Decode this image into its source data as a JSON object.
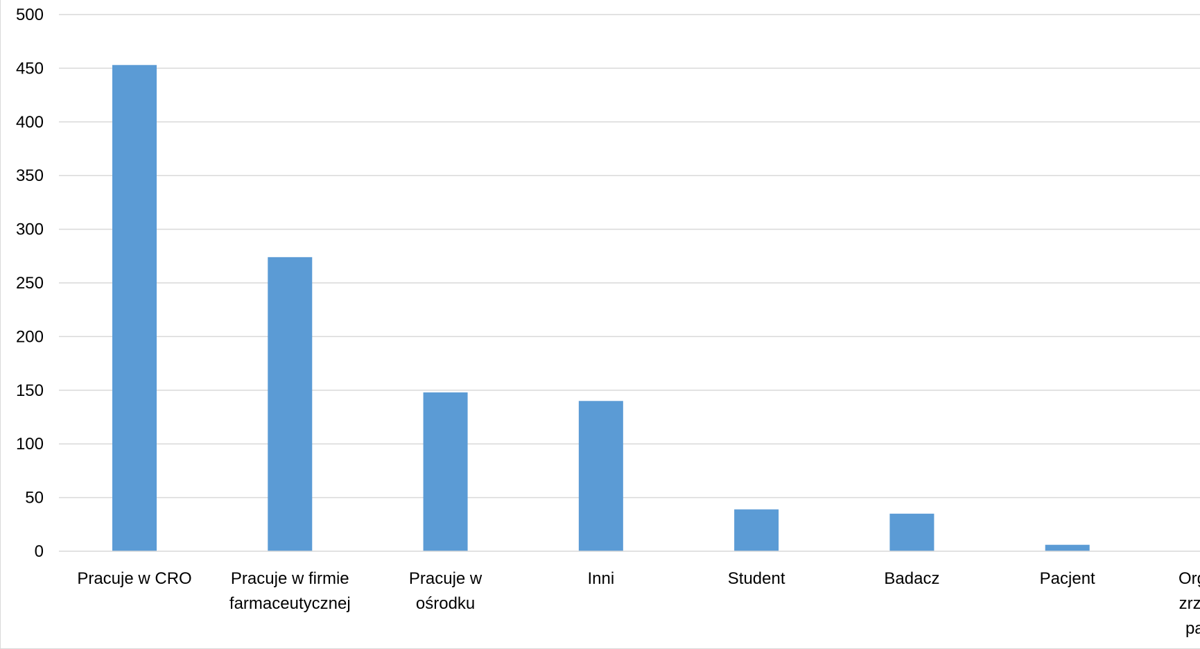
{
  "chart_data": {
    "type": "bar",
    "title": "",
    "xlabel": "",
    "ylabel": "",
    "ylim": [
      0,
      500
    ],
    "yticks": [
      "0",
      "50",
      "100",
      "150",
      "200",
      "250",
      "300",
      "350",
      "400",
      "450",
      "500"
    ],
    "grid": true,
    "legend": "none",
    "bar_color": "#5b9bd5",
    "grid_color": "#d9d9d9",
    "categories": [
      [
        "Pracuje w CRO"
      ],
      [
        "Pracuje w firmie",
        "farmaceutycznej"
      ],
      [
        "Pracuje w",
        "ośrodku"
      ],
      [
        "Inni"
      ],
      [
        "Student"
      ],
      [
        "Badacz"
      ],
      [
        "Pacjent"
      ],
      [
        "Organizacja",
        "zrzeszająca",
        "pacjentów"
      ]
    ],
    "values": [
      453,
      274,
      148,
      140,
      39,
      35,
      6,
      5
    ]
  }
}
